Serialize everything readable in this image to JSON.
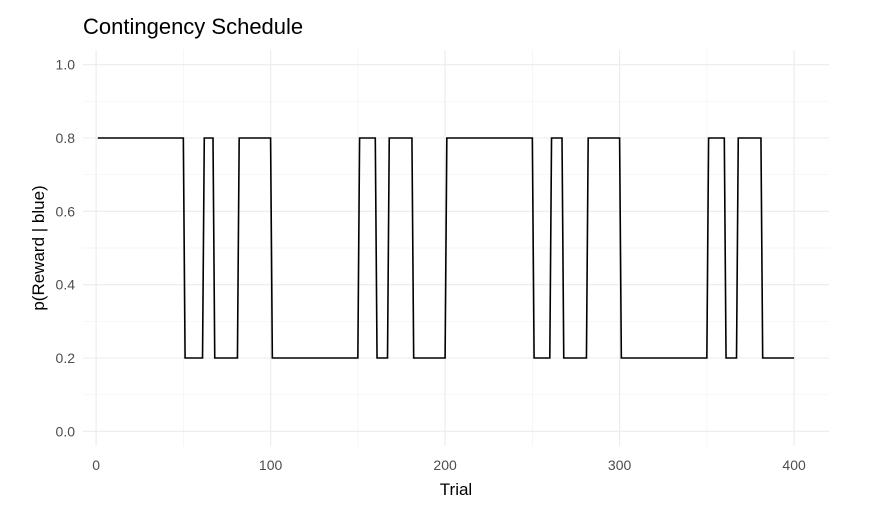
{
  "chart_data": {
    "type": "line",
    "title": "Contingency Schedule",
    "xlabel": "Trial",
    "ylabel": "p(Reward | blue)",
    "xlim": [
      -7.5,
      420
    ],
    "ylim": [
      -0.04,
      1.04
    ],
    "x_ticks": [
      0,
      100,
      200,
      300,
      400
    ],
    "y_ticks": [
      0.0,
      0.2,
      0.4,
      0.6,
      0.8,
      1.0
    ],
    "x_tick_labels": [
      "0",
      "100",
      "200",
      "300",
      "400"
    ],
    "y_tick_labels": [
      "0.0",
      "0.2",
      "0.4",
      "0.6",
      "0.8",
      "1.0"
    ],
    "grid": true,
    "series": [
      {
        "color": "#000000",
        "x": [
          1,
          50,
          51,
          61,
          62,
          67,
          68,
          81,
          82,
          100,
          101,
          150,
          151,
          160,
          161,
          167,
          168,
          181,
          182,
          200,
          201,
          250,
          251,
          260,
          261,
          267,
          268,
          281,
          282,
          300,
          301,
          350,
          351,
          360,
          361,
          367,
          368,
          381,
          382,
          400
        ],
        "y": [
          0.8,
          0.8,
          0.2,
          0.2,
          0.8,
          0.8,
          0.2,
          0.2,
          0.8,
          0.8,
          0.2,
          0.2,
          0.8,
          0.8,
          0.2,
          0.2,
          0.8,
          0.8,
          0.2,
          0.2,
          0.8,
          0.8,
          0.2,
          0.2,
          0.8,
          0.8,
          0.2,
          0.2,
          0.8,
          0.8,
          0.2,
          0.2,
          0.8,
          0.8,
          0.2,
          0.2,
          0.8,
          0.8,
          0.2,
          0.2
        ]
      }
    ]
  }
}
